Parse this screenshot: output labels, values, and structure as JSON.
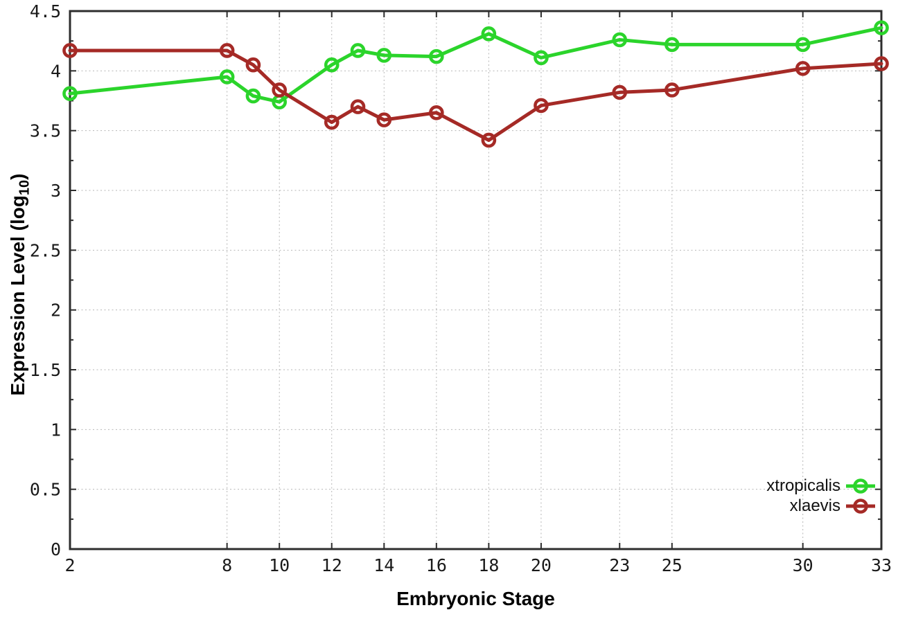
{
  "figure": {
    "background": "#ffffff",
    "border_color": "#2d2d2d",
    "grid_color": "#b6b6b6",
    "tick_label_color": "#1a1a1a"
  },
  "chart_data": {
    "type": "line",
    "title": "",
    "xlabel": "Embryonic Stage",
    "ylabel": "Expression Level (log₁₀)",
    "ylabel_parts": {
      "prefix": "Expression Level (log",
      "sub": "10",
      "suffix": ")"
    },
    "x": [
      2,
      8,
      9,
      10,
      12,
      13,
      14,
      16,
      18,
      20,
      23,
      25,
      30,
      33
    ],
    "series": [
      {
        "name": "xtropicalis",
        "color": "#2BD42B",
        "marker": "open-circle",
        "values": [
          3.81,
          3.95,
          3.79,
          3.74,
          4.05,
          4.17,
          4.13,
          4.12,
          4.31,
          4.11,
          4.26,
          4.22,
          4.22,
          4.36
        ]
      },
      {
        "name": "xlaevis",
        "color": "#A52A26",
        "marker": "open-circle",
        "values": [
          4.17,
          4.17,
          4.05,
          3.84,
          3.57,
          3.7,
          3.59,
          3.65,
          3.42,
          3.71,
          3.82,
          3.84,
          4.02,
          4.06
        ]
      }
    ],
    "xlim": [
      2,
      33
    ],
    "ylim": [
      0,
      4.5
    ],
    "x_tick_values": [
      2,
      8,
      10,
      12,
      14,
      16,
      18,
      20,
      23,
      25,
      30,
      33
    ],
    "x_tick_labels": [
      "2",
      "8",
      "10",
      "12",
      "14",
      "16",
      "18",
      "20",
      "23",
      "25",
      "30",
      "33"
    ],
    "y_tick_values": [
      0,
      0.5,
      1,
      1.5,
      2,
      2.5,
      3,
      3.5,
      4,
      4.5
    ],
    "y_tick_labels": [
      "0",
      "0.5",
      "1",
      "1.5",
      "2",
      "2.5",
      "3",
      "3.5",
      "4",
      "4.5"
    ],
    "y_minor_tick_step": 0.25,
    "grid": true,
    "legend_position": "bottom-right"
  }
}
